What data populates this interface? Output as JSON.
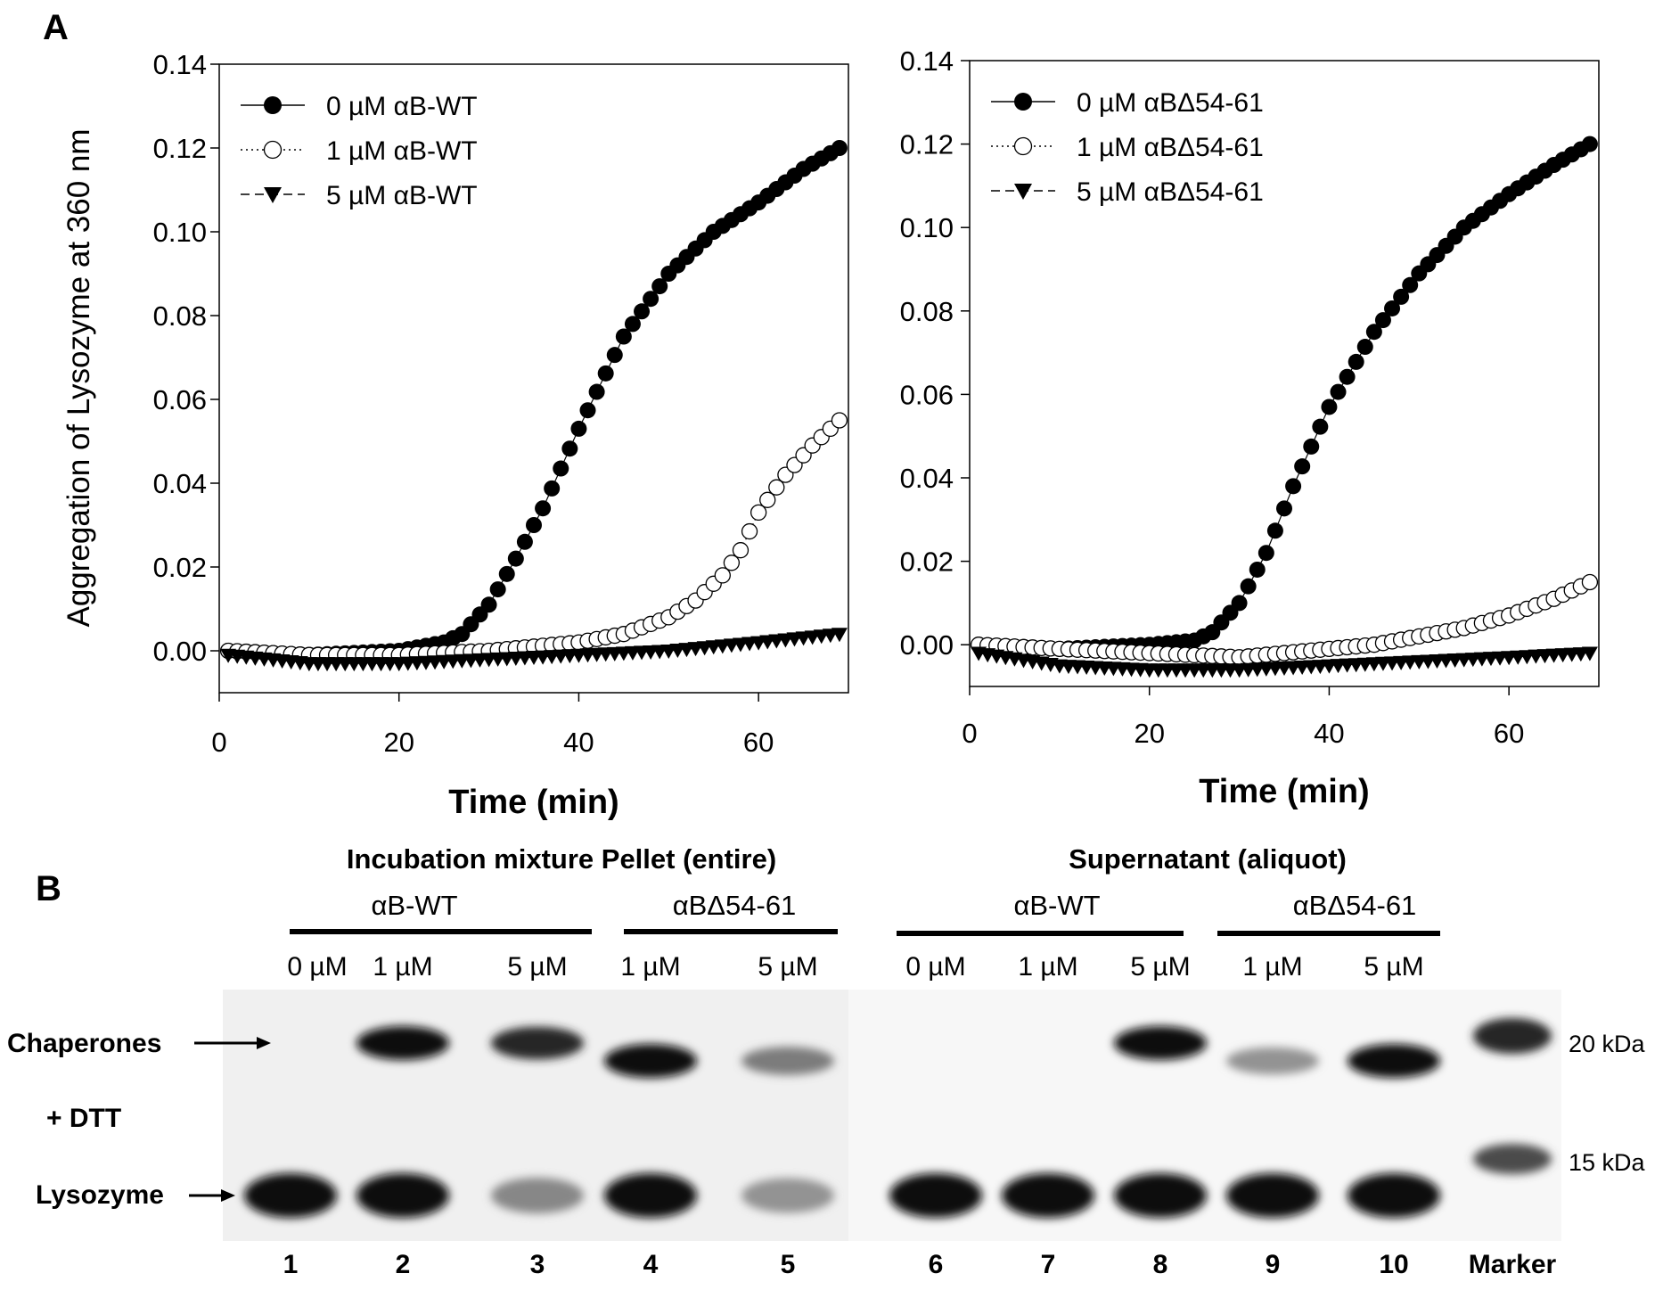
{
  "panel_labels": {
    "a": "A",
    "b": "B"
  },
  "chart_data": [
    {
      "type": "scatter",
      "title": "",
      "xlabel": "Time (min)",
      "ylabel": "Aggregation of Lysozyme at 360 nm",
      "xlim": [
        0,
        70
      ],
      "ylim": [
        -0.01,
        0.14
      ],
      "xticks": [
        "0",
        "20",
        "40",
        "60"
      ],
      "yticks": [
        "0.00",
        "0.02",
        "0.04",
        "0.06",
        "0.08",
        "0.10",
        "0.12",
        "0.14"
      ],
      "legend_position": "top-left",
      "series": [
        {
          "name": "0 µM αB-WT",
          "marker": "filled-circle",
          "line": "solid",
          "color": "#000000",
          "x": [
            1,
            10,
            20,
            25,
            27,
            30,
            33,
            36,
            40,
            45,
            50,
            55,
            60,
            65,
            69
          ],
          "values": [
            0.0,
            -0.001,
            0.0,
            0.002,
            0.004,
            0.011,
            0.022,
            0.034,
            0.053,
            0.075,
            0.09,
            0.1,
            0.107,
            0.115,
            0.12
          ]
        },
        {
          "name": "1 µM αB-WT",
          "marker": "open-circle",
          "line": "dotted",
          "color": "#000000",
          "x": [
            1,
            10,
            20,
            30,
            40,
            45,
            50,
            53,
            56,
            58,
            60,
            63,
            66,
            69
          ],
          "values": [
            0.0,
            -0.001,
            -0.001,
            0.0,
            0.002,
            0.004,
            0.008,
            0.012,
            0.018,
            0.024,
            0.033,
            0.042,
            0.049,
            0.055
          ]
        },
        {
          "name": "5 µM αB-WT",
          "marker": "filled-triangle-down",
          "line": "dashed",
          "color": "#000000",
          "x": [
            1,
            10,
            20,
            30,
            40,
            50,
            60,
            69
          ],
          "values": [
            -0.001,
            -0.003,
            -0.003,
            -0.002,
            -0.001,
            0.0,
            0.002,
            0.004
          ]
        }
      ]
    },
    {
      "type": "scatter",
      "title": "",
      "xlabel": "Time (min)",
      "ylabel": "",
      "xlim": [
        0,
        70
      ],
      "ylim": [
        -0.01,
        0.14
      ],
      "xticks": [
        "0",
        "20",
        "40",
        "60"
      ],
      "yticks": [
        "0.00",
        "0.02",
        "0.04",
        "0.06",
        "0.08",
        "0.10",
        "0.12",
        "0.14"
      ],
      "legend_position": "top-left",
      "series": [
        {
          "name": "0 µM αBΔ54-61",
          "marker": "filled-circle",
          "line": "solid",
          "color": "#000000",
          "x": [
            1,
            10,
            20,
            25,
            27,
            30,
            33,
            36,
            40,
            45,
            50,
            55,
            60,
            65,
            69
          ],
          "values": [
            0.0,
            -0.001,
            0.0,
            0.001,
            0.003,
            0.01,
            0.022,
            0.038,
            0.057,
            0.075,
            0.089,
            0.1,
            0.108,
            0.115,
            0.12
          ]
        },
        {
          "name": "1 µM αBΔ54-61",
          "marker": "open-circle",
          "line": "dotted",
          "color": "#000000",
          "x": [
            1,
            10,
            20,
            30,
            40,
            45,
            50,
            55,
            60,
            65,
            69
          ],
          "values": [
            0.0,
            -0.001,
            -0.002,
            -0.003,
            -0.001,
            0.0,
            0.002,
            0.004,
            0.007,
            0.011,
            0.015
          ]
        },
        {
          "name": "5 µM αBΔ54-61",
          "marker": "filled-triangle-down",
          "line": "dashed",
          "color": "#000000",
          "x": [
            1,
            10,
            20,
            30,
            40,
            50,
            60,
            69
          ],
          "values": [
            -0.002,
            -0.005,
            -0.006,
            -0.006,
            -0.005,
            -0.004,
            -0.003,
            -0.002
          ]
        }
      ]
    }
  ],
  "gel": {
    "groups": [
      {
        "header": "Incubation mixture Pellet (entire)",
        "subgroups": [
          "αB-WT",
          "αBΔ54-61"
        ]
      },
      {
        "header": "Supernatant (aliquot)",
        "subgroups": [
          "αB-WT",
          "αBΔ54-61"
        ]
      }
    ],
    "concentrations": [
      "0 µM",
      "1 µM",
      "5 µM",
      "1 µM",
      "5 µM",
      "0 µM",
      "1 µM",
      "5 µM",
      "1 µM",
      "5 µM"
    ],
    "row_labels": {
      "chaperones": "Chaperones",
      "dtt": "+ DTT",
      "lysozyme": "Lysozyme"
    },
    "lane_numbers": [
      "1",
      "2",
      "3",
      "4",
      "5",
      "6",
      "7",
      "8",
      "9",
      "10",
      "Marker"
    ],
    "marker_labels": [
      "20 kDa",
      "15 kDa"
    ],
    "chaperone_band_intensity": [
      0.0,
      1.0,
      0.9,
      1.0,
      0.55,
      0.0,
      0.0,
      1.0,
      0.45,
      1.0
    ],
    "chaperone_band_type": [
      "none",
      "WT",
      "WT",
      "del",
      "del",
      "none",
      "none",
      "WT",
      "del",
      "del"
    ],
    "lysozyme_band_intensity": [
      1.0,
      1.0,
      0.5,
      1.0,
      0.45,
      1.0,
      1.0,
      1.0,
      1.0,
      1.0
    ],
    "marker_band_intensity": [
      0.9,
      0.75
    ]
  }
}
